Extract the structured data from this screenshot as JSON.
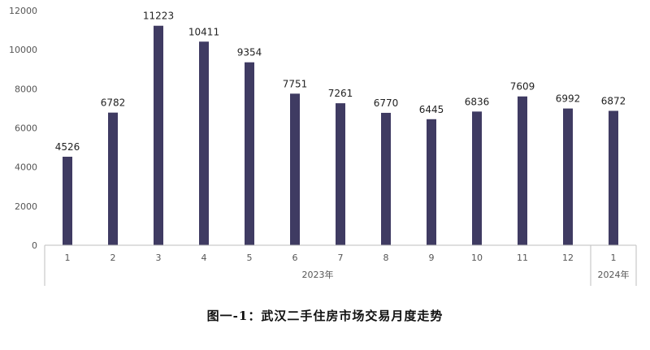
{
  "chart_data": {
    "type": "bar",
    "categories": [
      "1",
      "2",
      "3",
      "4",
      "5",
      "6",
      "7",
      "8",
      "9",
      "10",
      "11",
      "12",
      "1"
    ],
    "groups": [
      {
        "label": "2023年",
        "count": 12
      },
      {
        "label": "2024年",
        "count": 1
      }
    ],
    "values": [
      4526,
      6782,
      11223,
      10411,
      9354,
      7751,
      7261,
      6770,
      6445,
      6836,
      7609,
      6992,
      6872
    ],
    "yticks": [
      0,
      2000,
      4000,
      6000,
      8000,
      10000,
      12000
    ],
    "ylim": [
      0,
      12000
    ],
    "bar_color": "#3f3b62",
    "grid": false,
    "data_labels": true
  },
  "caption": "图一-1：武汉二手住房市场交易月度走势"
}
